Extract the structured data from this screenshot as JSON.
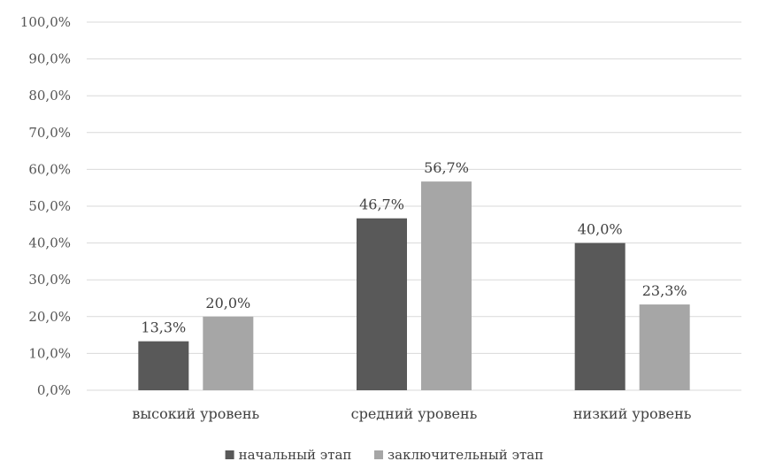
{
  "chart_data": {
    "type": "bar",
    "categories": [
      "высокий уровень",
      "средний уровень",
      "низкий уровень"
    ],
    "series": [
      {
        "name": "начальный этап",
        "values": [
          13.3,
          46.7,
          40.0
        ],
        "labels": [
          "13,3%",
          "46,7%",
          "40,0%"
        ],
        "color": "#595959"
      },
      {
        "name": "заключительный этап",
        "values": [
          20.0,
          56.7,
          23.3
        ],
        "labels": [
          "20,0%",
          "56,7%",
          "23,3%"
        ],
        "color": "#a6a6a6"
      }
    ],
    "ylim": [
      0,
      100
    ],
    "yticks": [
      0,
      10,
      20,
      30,
      40,
      50,
      60,
      70,
      80,
      90,
      100
    ],
    "ytick_labels": [
      "0,0%",
      "10,0%",
      "20,0%",
      "30,0%",
      "40,0%",
      "50,0%",
      "60,0%",
      "70,0%",
      "80,0%",
      "90,0%",
      "100,0%"
    ],
    "grid": true,
    "legend_position": "bottom"
  }
}
